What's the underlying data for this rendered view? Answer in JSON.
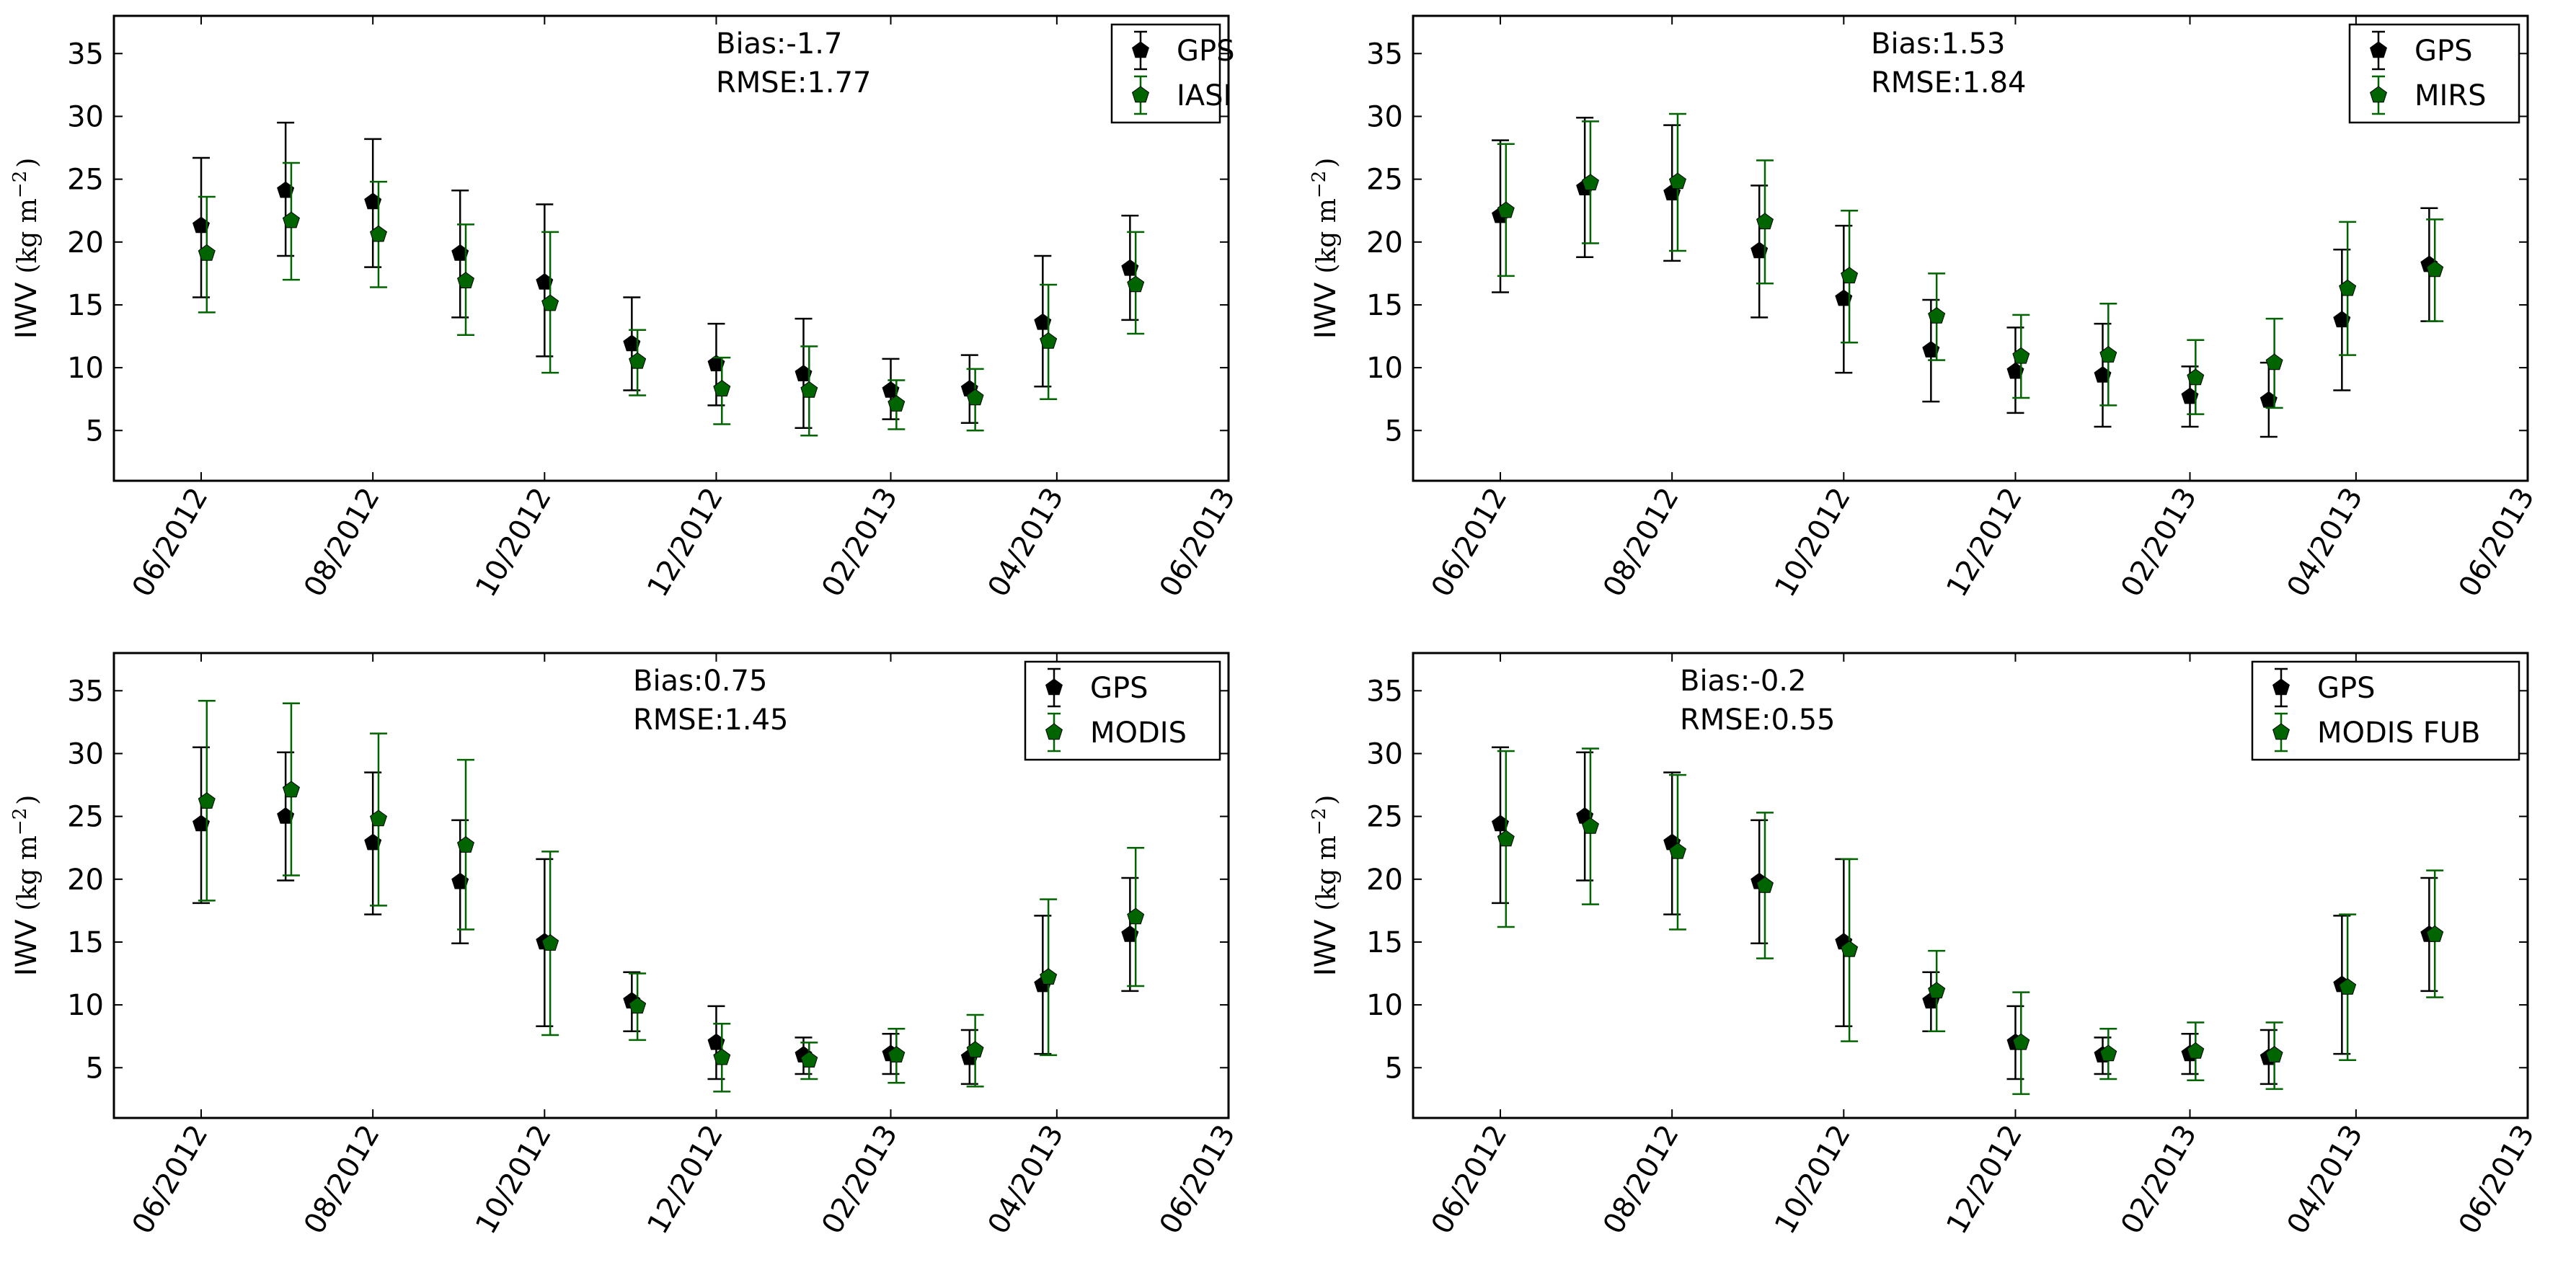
{
  "chart_data": [
    {
      "type": "scatter",
      "title": "",
      "xlabel": "",
      "ylabel": "IWV",
      "ylabel_unit": "(kg m",
      "ylabel_exp": "−2",
      "ylabel_close": ")",
      "xlim": [
        "2012-05-01",
        "2013-06-01"
      ],
      "ylim": [
        1,
        38
      ],
      "xticks": [
        "2012-06-01",
        "2012-08-01",
        "2012-10-01",
        "2012-12-01",
        "2013-02-01",
        "2013-04-01",
        "2013-06-01"
      ],
      "xtick_labels": [
        "06/2012",
        "08/2012",
        "10/2012",
        "12/2012",
        "02/2013",
        "04/2013",
        "06/2013"
      ],
      "yticks": [
        5,
        10,
        15,
        20,
        25,
        30,
        35
      ],
      "ytick_labels": [
        "5",
        "10",
        "15",
        "20",
        "25",
        "30",
        "35"
      ],
      "grid": false,
      "legend_position": "top-right",
      "stats_lines": [
        "Bias:-1.7",
        "RMSE:1.77"
      ],
      "series": [
        {
          "name": "GPS",
          "color": "#000000",
          "points": [
            {
              "x": "2012-06-01",
              "y": 21.3,
              "low": 15.6,
              "high": 26.7
            },
            {
              "x": "2012-07-01",
              "y": 24.1,
              "low": 18.9,
              "high": 29.5
            },
            {
              "x": "2012-08-01",
              "y": 23.2,
              "low": 18.0,
              "high": 28.2
            },
            {
              "x": "2012-09-01",
              "y": 19.1,
              "low": 14.0,
              "high": 24.1
            },
            {
              "x": "2012-10-01",
              "y": 16.8,
              "low": 10.9,
              "high": 23.0
            },
            {
              "x": "2012-11-01",
              "y": 11.9,
              "low": 8.2,
              "high": 15.6
            },
            {
              "x": "2012-12-01",
              "y": 10.3,
              "low": 7.0,
              "high": 13.5
            },
            {
              "x": "2013-01-01",
              "y": 9.5,
              "low": 5.2,
              "high": 13.9
            },
            {
              "x": "2013-02-01",
              "y": 8.2,
              "low": 5.9,
              "high": 10.7
            },
            {
              "x": "2013-03-01",
              "y": 8.3,
              "low": 5.6,
              "high": 11.0
            },
            {
              "x": "2013-03-27",
              "y": 13.6,
              "low": 8.5,
              "high": 18.9
            },
            {
              "x": "2013-04-27",
              "y": 17.9,
              "low": 13.8,
              "high": 22.1
            }
          ]
        },
        {
          "name": "IASI",
          "color": "#006400",
          "points": [
            {
              "x": "2012-06-03",
              "y": 19.1,
              "low": 14.4,
              "high": 23.6
            },
            {
              "x": "2012-07-03",
              "y": 21.7,
              "low": 17.0,
              "high": 26.3
            },
            {
              "x": "2012-08-03",
              "y": 20.6,
              "low": 16.4,
              "high": 24.8
            },
            {
              "x": "2012-09-03",
              "y": 16.9,
              "low": 12.6,
              "high": 21.4
            },
            {
              "x": "2012-10-03",
              "y": 15.1,
              "low": 9.6,
              "high": 20.8
            },
            {
              "x": "2012-11-03",
              "y": 10.5,
              "low": 7.8,
              "high": 13.0
            },
            {
              "x": "2012-12-03",
              "y": 8.3,
              "low": 5.5,
              "high": 10.8
            },
            {
              "x": "2013-01-03",
              "y": 8.2,
              "low": 4.6,
              "high": 11.7
            },
            {
              "x": "2013-02-03",
              "y": 7.1,
              "low": 5.1,
              "high": 9.0
            },
            {
              "x": "2013-03-03",
              "y": 7.6,
              "low": 5.0,
              "high": 9.9
            },
            {
              "x": "2013-03-29",
              "y": 12.1,
              "low": 7.5,
              "high": 16.6
            },
            {
              "x": "2013-04-29",
              "y": 16.6,
              "low": 12.7,
              "high": 20.8
            }
          ]
        }
      ]
    },
    {
      "type": "scatter",
      "title": "",
      "xlabel": "",
      "ylabel": "IWV",
      "ylabel_unit": "(kg m",
      "ylabel_exp": "−2",
      "ylabel_close": ")",
      "xlim": [
        "2012-05-01",
        "2013-06-01"
      ],
      "ylim": [
        1,
        38
      ],
      "xticks": [
        "2012-06-01",
        "2012-08-01",
        "2012-10-01",
        "2012-12-01",
        "2013-02-01",
        "2013-04-01",
        "2013-06-01"
      ],
      "xtick_labels": [
        "06/2012",
        "08/2012",
        "10/2012",
        "12/2012",
        "02/2013",
        "04/2013",
        "06/2013"
      ],
      "yticks": [
        5,
        10,
        15,
        20,
        25,
        30,
        35
      ],
      "ytick_labels": [
        "5",
        "10",
        "15",
        "20",
        "25",
        "30",
        "35"
      ],
      "grid": false,
      "legend_position": "top-right",
      "stats_lines": [
        "Bias:1.53",
        "RMSE:1.84"
      ],
      "series": [
        {
          "name": "GPS",
          "color": "#000000",
          "points": [
            {
              "x": "2012-06-01",
              "y": 22.1,
              "low": 16.0,
              "high": 28.1
            },
            {
              "x": "2012-07-01",
              "y": 24.3,
              "low": 18.8,
              "high": 29.9
            },
            {
              "x": "2012-08-01",
              "y": 23.9,
              "low": 18.5,
              "high": 29.3
            },
            {
              "x": "2012-09-01",
              "y": 19.3,
              "low": 14.0,
              "high": 24.5
            },
            {
              "x": "2012-10-01",
              "y": 15.5,
              "low": 9.6,
              "high": 21.3
            },
            {
              "x": "2012-11-01",
              "y": 11.4,
              "low": 7.3,
              "high": 15.4
            },
            {
              "x": "2012-12-01",
              "y": 9.7,
              "low": 6.4,
              "high": 13.2
            },
            {
              "x": "2013-01-01",
              "y": 9.4,
              "low": 5.3,
              "high": 13.5
            },
            {
              "x": "2013-02-01",
              "y": 7.7,
              "low": 5.3,
              "high": 10.1
            },
            {
              "x": "2013-03-01",
              "y": 7.4,
              "low": 4.5,
              "high": 10.4
            },
            {
              "x": "2013-03-27",
              "y": 13.8,
              "low": 8.2,
              "high": 19.4
            },
            {
              "x": "2013-04-27",
              "y": 18.2,
              "low": 13.7,
              "high": 22.7
            }
          ]
        },
        {
          "name": "MIRS",
          "color": "#006400",
          "points": [
            {
              "x": "2012-06-03",
              "y": 22.5,
              "low": 17.3,
              "high": 27.8
            },
            {
              "x": "2012-07-03",
              "y": 24.7,
              "low": 19.9,
              "high": 29.6
            },
            {
              "x": "2012-08-03",
              "y": 24.8,
              "low": 19.3,
              "high": 30.2
            },
            {
              "x": "2012-09-03",
              "y": 21.6,
              "low": 16.7,
              "high": 26.5
            },
            {
              "x": "2012-10-03",
              "y": 17.3,
              "low": 12.0,
              "high": 22.5
            },
            {
              "x": "2012-11-03",
              "y": 14.1,
              "low": 10.6,
              "high": 17.5
            },
            {
              "x": "2012-12-03",
              "y": 10.9,
              "low": 7.6,
              "high": 14.2
            },
            {
              "x": "2013-01-03",
              "y": 11.0,
              "low": 7.0,
              "high": 15.1
            },
            {
              "x": "2013-02-03",
              "y": 9.2,
              "low": 6.3,
              "high": 12.2
            },
            {
              "x": "2013-03-03",
              "y": 10.4,
              "low": 6.8,
              "high": 13.9
            },
            {
              "x": "2013-03-29",
              "y": 16.3,
              "low": 11.0,
              "high": 21.6
            },
            {
              "x": "2013-04-29",
              "y": 17.8,
              "low": 13.7,
              "high": 21.8
            }
          ]
        }
      ]
    },
    {
      "type": "scatter",
      "title": "",
      "xlabel": "",
      "ylabel": "IWV",
      "ylabel_unit": "(kg m",
      "ylabel_exp": "−2",
      "ylabel_close": ")",
      "xlim": [
        "2012-05-01",
        "2013-06-01"
      ],
      "ylim": [
        1,
        38
      ],
      "xticks": [
        "2012-06-01",
        "2012-08-01",
        "2012-10-01",
        "2012-12-01",
        "2013-02-01",
        "2013-04-01",
        "2013-06-01"
      ],
      "xtick_labels": [
        "06/2012",
        "08/2012",
        "10/2012",
        "12/2012",
        "02/2013",
        "04/2013",
        "06/2013"
      ],
      "yticks": [
        5,
        10,
        15,
        20,
        25,
        30,
        35
      ],
      "ytick_labels": [
        "5",
        "10",
        "15",
        "20",
        "25",
        "30",
        "35"
      ],
      "grid": false,
      "legend_position": "top-right",
      "stats_lines": [
        "Bias:0.75",
        "RMSE:1.45"
      ],
      "series": [
        {
          "name": "GPS",
          "color": "#000000",
          "points": [
            {
              "x": "2012-06-01",
              "y": 24.4,
              "low": 18.1,
              "high": 30.5
            },
            {
              "x": "2012-07-01",
              "y": 25.0,
              "low": 19.9,
              "high": 30.1
            },
            {
              "x": "2012-08-01",
              "y": 22.9,
              "low": 17.2,
              "high": 28.5
            },
            {
              "x": "2012-09-01",
              "y": 19.8,
              "low": 14.9,
              "high": 24.7
            },
            {
              "x": "2012-10-01",
              "y": 15.0,
              "low": 8.3,
              "high": 21.6
            },
            {
              "x": "2012-11-01",
              "y": 10.3,
              "low": 7.9,
              "high": 12.6
            },
            {
              "x": "2012-12-01",
              "y": 7.0,
              "low": 4.1,
              "high": 9.9
            },
            {
              "x": "2013-01-01",
              "y": 6.0,
              "low": 4.5,
              "high": 7.4
            },
            {
              "x": "2013-02-01",
              "y": 6.1,
              "low": 4.5,
              "high": 7.7
            },
            {
              "x": "2013-03-01",
              "y": 5.8,
              "low": 3.7,
              "high": 8.0
            },
            {
              "x": "2013-03-27",
              "y": 11.6,
              "low": 6.1,
              "high": 17.1
            },
            {
              "x": "2013-04-27",
              "y": 15.6,
              "low": 11.1,
              "high": 20.1
            }
          ]
        },
        {
          "name": "MODIS",
          "color": "#006400",
          "points": [
            {
              "x": "2012-06-03",
              "y": 26.2,
              "low": 18.3,
              "high": 34.2
            },
            {
              "x": "2012-07-03",
              "y": 27.1,
              "low": 20.3,
              "high": 34.0
            },
            {
              "x": "2012-08-03",
              "y": 24.8,
              "low": 17.9,
              "high": 31.6
            },
            {
              "x": "2012-09-03",
              "y": 22.7,
              "low": 16.0,
              "high": 29.5
            },
            {
              "x": "2012-10-03",
              "y": 14.9,
              "low": 7.6,
              "high": 22.2
            },
            {
              "x": "2012-11-03",
              "y": 9.9,
              "low": 7.2,
              "high": 12.5
            },
            {
              "x": "2012-12-03",
              "y": 5.8,
              "low": 3.1,
              "high": 8.5
            },
            {
              "x": "2013-01-03",
              "y": 5.6,
              "low": 4.1,
              "high": 7.0
            },
            {
              "x": "2013-02-03",
              "y": 6.0,
              "low": 3.8,
              "high": 8.1
            },
            {
              "x": "2013-03-03",
              "y": 6.4,
              "low": 3.5,
              "high": 9.2
            },
            {
              "x": "2013-03-29",
              "y": 12.2,
              "low": 6.0,
              "high": 18.4
            },
            {
              "x": "2013-04-29",
              "y": 17.0,
              "low": 11.5,
              "high": 22.5
            }
          ]
        }
      ]
    },
    {
      "type": "scatter",
      "title": "",
      "xlabel": "",
      "ylabel": "IWV",
      "ylabel_unit": "(kg m",
      "ylabel_exp": "−2",
      "ylabel_close": ")",
      "xlim": [
        "2012-05-01",
        "2013-06-01"
      ],
      "ylim": [
        1,
        38
      ],
      "xticks": [
        "2012-06-01",
        "2012-08-01",
        "2012-10-01",
        "2012-12-01",
        "2013-02-01",
        "2013-04-01",
        "2013-06-01"
      ],
      "xtick_labels": [
        "06/2012",
        "08/2012",
        "10/2012",
        "12/2012",
        "02/2013",
        "04/2013",
        "06/2013"
      ],
      "yticks": [
        5,
        10,
        15,
        20,
        25,
        30,
        35
      ],
      "ytick_labels": [
        "5",
        "10",
        "15",
        "20",
        "25",
        "30",
        "35"
      ],
      "grid": false,
      "legend_position": "top-right",
      "stats_lines": [
        "Bias:-0.2",
        "RMSE:0.55"
      ],
      "series": [
        {
          "name": "GPS",
          "color": "#000000",
          "points": [
            {
              "x": "2012-06-01",
              "y": 24.4,
              "low": 18.1,
              "high": 30.5
            },
            {
              "x": "2012-07-01",
              "y": 25.0,
              "low": 19.9,
              "high": 30.1
            },
            {
              "x": "2012-08-01",
              "y": 22.9,
              "low": 17.2,
              "high": 28.5
            },
            {
              "x": "2012-09-01",
              "y": 19.8,
              "low": 14.9,
              "high": 24.7
            },
            {
              "x": "2012-10-01",
              "y": 15.0,
              "low": 8.3,
              "high": 21.6
            },
            {
              "x": "2012-11-01",
              "y": 10.3,
              "low": 7.9,
              "high": 12.6
            },
            {
              "x": "2012-12-01",
              "y": 7.0,
              "low": 4.1,
              "high": 9.9
            },
            {
              "x": "2013-01-01",
              "y": 6.0,
              "low": 4.5,
              "high": 7.4
            },
            {
              "x": "2013-02-01",
              "y": 6.1,
              "low": 4.5,
              "high": 7.7
            },
            {
              "x": "2013-03-01",
              "y": 5.8,
              "low": 3.7,
              "high": 8.0
            },
            {
              "x": "2013-03-27",
              "y": 11.6,
              "low": 6.1,
              "high": 17.1
            },
            {
              "x": "2013-04-27",
              "y": 15.6,
              "low": 11.1,
              "high": 20.1
            }
          ]
        },
        {
          "name": "MODIS FUB",
          "color": "#006400",
          "points": [
            {
              "x": "2012-06-03",
              "y": 23.2,
              "low": 16.2,
              "high": 30.2
            },
            {
              "x": "2012-07-03",
              "y": 24.2,
              "low": 18.0,
              "high": 30.4
            },
            {
              "x": "2012-08-03",
              "y": 22.2,
              "low": 16.0,
              "high": 28.3
            },
            {
              "x": "2012-09-03",
              "y": 19.5,
              "low": 13.7,
              "high": 25.3
            },
            {
              "x": "2012-10-03",
              "y": 14.4,
              "low": 7.1,
              "high": 21.6
            },
            {
              "x": "2012-11-03",
              "y": 11.1,
              "low": 7.9,
              "high": 14.3
            },
            {
              "x": "2012-12-03",
              "y": 7.0,
              "low": 2.9,
              "high": 11.0
            },
            {
              "x": "2013-01-03",
              "y": 6.1,
              "low": 4.1,
              "high": 8.1
            },
            {
              "x": "2013-02-03",
              "y": 6.3,
              "low": 4.0,
              "high": 8.6
            },
            {
              "x": "2013-03-03",
              "y": 6.0,
              "low": 3.3,
              "high": 8.6
            },
            {
              "x": "2013-03-29",
              "y": 11.4,
              "low": 5.6,
              "high": 17.2
            },
            {
              "x": "2013-04-29",
              "y": 15.6,
              "low": 10.6,
              "high": 20.7
            }
          ]
        }
      ]
    }
  ]
}
